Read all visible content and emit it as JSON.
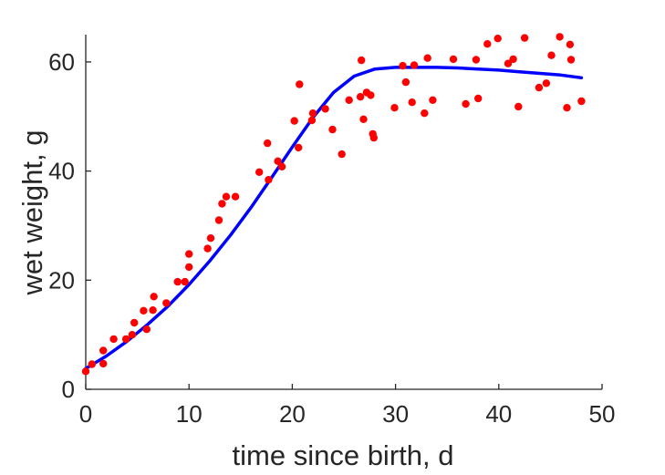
{
  "chart_data": {
    "type": "scatter",
    "xlabel": "time since birth, d",
    "ylabel": "wet weight, g",
    "xlim": [
      0,
      50
    ],
    "ylim": [
      0,
      65
    ],
    "xticks": [
      0,
      10,
      20,
      30,
      40,
      50
    ],
    "yticks": [
      0,
      20,
      40,
      60
    ],
    "grid": false,
    "colors": {
      "points": "#ff0000",
      "curve": "#0000ff",
      "axis": "#262626"
    },
    "series": [
      {
        "kind": "scatter",
        "points": [
          [
            0,
            3.3
          ],
          [
            0.6,
            4.6
          ],
          [
            1.7,
            4.7
          ],
          [
            1.7,
            7.1
          ],
          [
            2.7,
            9.2
          ],
          [
            3.9,
            9.2
          ],
          [
            4.5,
            10.0
          ],
          [
            4.7,
            12.2
          ],
          [
            5.6,
            14.4
          ],
          [
            5.9,
            11.0
          ],
          [
            6.5,
            14.5
          ],
          [
            6.6,
            17.0
          ],
          [
            7.8,
            15.8
          ],
          [
            8.9,
            19.7
          ],
          [
            9.6,
            19.7
          ],
          [
            10.0,
            22.4
          ],
          [
            10.0,
            24.8
          ],
          [
            11.8,
            25.8
          ],
          [
            12.1,
            27.7
          ],
          [
            12.9,
            31.0
          ],
          [
            13.2,
            34.0
          ],
          [
            13.6,
            35.3
          ],
          [
            14.5,
            35.3
          ],
          [
            16.8,
            39.8
          ],
          [
            17.6,
            45.1
          ],
          [
            17.7,
            38.4
          ],
          [
            18.6,
            41.8
          ],
          [
            19.0,
            40.8
          ],
          [
            20.2,
            49.2
          ],
          [
            20.6,
            44.3
          ],
          [
            20.7,
            55.9
          ],
          [
            21.9,
            49.3
          ],
          [
            22.0,
            50.6
          ],
          [
            23.2,
            51.4
          ],
          [
            23.9,
            47.6
          ],
          [
            24.8,
            43.1
          ],
          [
            25.5,
            53.0
          ],
          [
            26.6,
            53.6
          ],
          [
            26.7,
            60.3
          ],
          [
            26.9,
            49.5
          ],
          [
            27.2,
            54.4
          ],
          [
            27.6,
            53.9
          ],
          [
            27.8,
            46.8
          ],
          [
            27.9,
            46.1
          ],
          [
            29.9,
            51.6
          ],
          [
            30.7,
            59.3
          ],
          [
            31.0,
            56.3
          ],
          [
            31.6,
            52.6
          ],
          [
            31.8,
            59.4
          ],
          [
            32.8,
            50.6
          ],
          [
            33.1,
            60.7
          ],
          [
            33.6,
            53.0
          ],
          [
            35.6,
            60.5
          ],
          [
            36.8,
            52.3
          ],
          [
            37.8,
            60.4
          ],
          [
            38.0,
            53.3
          ],
          [
            38.9,
            63.3
          ],
          [
            39.9,
            64.3
          ],
          [
            40.9,
            59.7
          ],
          [
            41.4,
            60.5
          ],
          [
            41.9,
            51.8
          ],
          [
            42.5,
            64.4
          ],
          [
            43.9,
            55.3
          ],
          [
            44.6,
            56.1
          ],
          [
            45.1,
            61.2
          ],
          [
            45.9,
            64.6
          ],
          [
            46.6,
            51.6
          ],
          [
            46.9,
            63.2
          ],
          [
            47.0,
            60.4
          ],
          [
            48.0,
            52.8
          ]
        ]
      },
      {
        "kind": "line",
        "points": [
          [
            0,
            3.8
          ],
          [
            2,
            6.1
          ],
          [
            4,
            8.8
          ],
          [
            6,
            11.9
          ],
          [
            8,
            15.3
          ],
          [
            10,
            19.2
          ],
          [
            12,
            23.5
          ],
          [
            14,
            28.2
          ],
          [
            16,
            33.3
          ],
          [
            18,
            38.8
          ],
          [
            20,
            44.4
          ],
          [
            22,
            49.8
          ],
          [
            24,
            54.4
          ],
          [
            26,
            57.4
          ],
          [
            28,
            58.7
          ],
          [
            30,
            59.0
          ],
          [
            32,
            59.0
          ],
          [
            34,
            59.0
          ],
          [
            36,
            58.9
          ],
          [
            38,
            58.7
          ],
          [
            40,
            58.5
          ],
          [
            42,
            58.2
          ],
          [
            44,
            57.9
          ],
          [
            46,
            57.6
          ],
          [
            48,
            57.1
          ]
        ]
      }
    ]
  }
}
